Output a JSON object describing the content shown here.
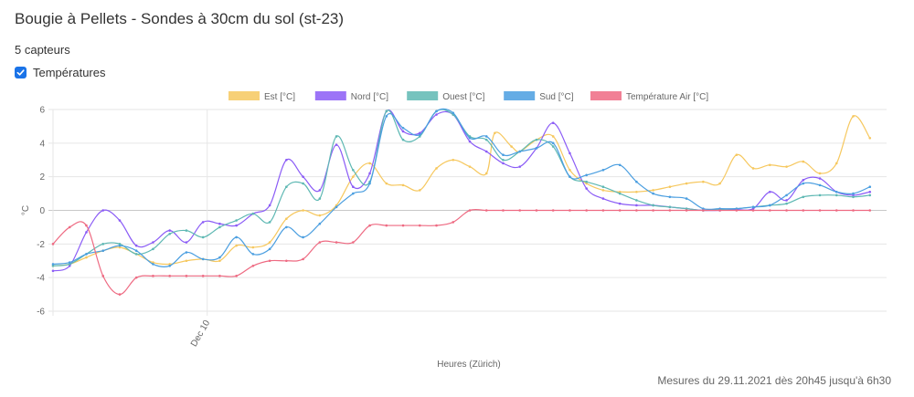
{
  "page": {
    "title": "Bougie à Pellets - Sondes à 30cm du sol (st-23)",
    "sensor_count": "5 capteurs",
    "checkbox_label": "Températures",
    "checkbox_checked": true,
    "footer": "Mesures du 29.11.2021 dès 20h45 jusqu'à 6h30"
  },
  "chart_data": {
    "type": "line",
    "xlabel": "Heures (Zürich)",
    "ylabel": "°C",
    "ylim": [
      -6,
      6
    ],
    "yticks": [
      6,
      4,
      2,
      0,
      -2,
      -4,
      -6
    ],
    "xtick_labels": [
      {
        "label": "Dec 10",
        "x": 0.185
      }
    ],
    "x_domain": [
      0,
      1
    ],
    "grid": true,
    "legend_position": "top",
    "series": [
      {
        "name": "Est [°C]",
        "color": "#f6c85f",
        "points": [
          [
            0,
            -3.3
          ],
          [
            0.02,
            -3.2
          ],
          [
            0.04,
            -2.8
          ],
          [
            0.06,
            -2.4
          ],
          [
            0.08,
            -2.2
          ],
          [
            0.1,
            -2.6
          ],
          [
            0.12,
            -3.1
          ],
          [
            0.14,
            -3.2
          ],
          [
            0.16,
            -3.0
          ],
          [
            0.18,
            -2.9
          ],
          [
            0.2,
            -3.0
          ],
          [
            0.22,
            -2.1
          ],
          [
            0.24,
            -2.2
          ],
          [
            0.26,
            -1.9
          ],
          [
            0.28,
            -0.5
          ],
          [
            0.3,
            0
          ],
          [
            0.32,
            -0.3
          ],
          [
            0.34,
            0.3
          ],
          [
            0.36,
            2.0
          ],
          [
            0.38,
            2.8
          ],
          [
            0.4,
            1.6
          ],
          [
            0.42,
            1.5
          ],
          [
            0.44,
            1.2
          ],
          [
            0.46,
            2.5
          ],
          [
            0.48,
            3.0
          ],
          [
            0.5,
            2.6
          ],
          [
            0.52,
            2.2
          ],
          [
            0.53,
            4.6
          ],
          [
            0.55,
            3.8
          ],
          [
            0.56,
            3.5
          ],
          [
            0.58,
            4.2
          ],
          [
            0.6,
            4.4
          ],
          [
            0.62,
            2.4
          ],
          [
            0.64,
            1.6
          ],
          [
            0.66,
            1.2
          ],
          [
            0.68,
            1.1
          ],
          [
            0.7,
            1.1
          ],
          [
            0.72,
            1.2
          ],
          [
            0.74,
            1.4
          ],
          [
            0.76,
            1.6
          ],
          [
            0.78,
            1.7
          ],
          [
            0.8,
            1.6
          ],
          [
            0.82,
            3.3
          ],
          [
            0.84,
            2.5
          ],
          [
            0.86,
            2.7
          ],
          [
            0.88,
            2.6
          ],
          [
            0.9,
            2.9
          ],
          [
            0.92,
            2.2
          ],
          [
            0.94,
            2.8
          ],
          [
            0.96,
            5.6
          ],
          [
            0.98,
            4.3
          ]
        ]
      },
      {
        "name": "Nord [°C]",
        "color": "#8b5cf6",
        "points": [
          [
            0,
            -3.6
          ],
          [
            0.02,
            -3.3
          ],
          [
            0.04,
            -1.3
          ],
          [
            0.06,
            0
          ],
          [
            0.08,
            -0.6
          ],
          [
            0.1,
            -2.1
          ],
          [
            0.12,
            -1.9
          ],
          [
            0.14,
            -1.2
          ],
          [
            0.16,
            -1.9
          ],
          [
            0.18,
            -0.7
          ],
          [
            0.2,
            -0.8
          ],
          [
            0.22,
            -0.9
          ],
          [
            0.24,
            -0.2
          ],
          [
            0.26,
            0.3
          ],
          [
            0.28,
            3.0
          ],
          [
            0.3,
            2.0
          ],
          [
            0.32,
            1.2
          ],
          [
            0.34,
            3.9
          ],
          [
            0.36,
            1.4
          ],
          [
            0.38,
            2.2
          ],
          [
            0.4,
            5.9
          ],
          [
            0.42,
            4.7
          ],
          [
            0.44,
            4.6
          ],
          [
            0.46,
            5.7
          ],
          [
            0.48,
            5.7
          ],
          [
            0.5,
            4.1
          ],
          [
            0.52,
            3.5
          ],
          [
            0.54,
            2.8
          ],
          [
            0.56,
            2.6
          ],
          [
            0.58,
            3.7
          ],
          [
            0.6,
            5.2
          ],
          [
            0.62,
            3.4
          ],
          [
            0.64,
            1.3
          ],
          [
            0.66,
            0.7
          ],
          [
            0.68,
            0.4
          ],
          [
            0.7,
            0.3
          ],
          [
            0.72,
            0.3
          ],
          [
            0.74,
            0.2
          ],
          [
            0.76,
            0.1
          ],
          [
            0.78,
            0
          ],
          [
            0.8,
            0
          ],
          [
            0.82,
            0.05
          ],
          [
            0.84,
            0.1
          ],
          [
            0.86,
            1.1
          ],
          [
            0.88,
            0.6
          ],
          [
            0.9,
            1.8
          ],
          [
            0.92,
            1.9
          ],
          [
            0.94,
            1.1
          ],
          [
            0.96,
            0.9
          ],
          [
            0.98,
            1.1
          ]
        ]
      },
      {
        "name": "Ouest [°C]",
        "color": "#5eb8b3",
        "points": [
          [
            0,
            -3.3
          ],
          [
            0.02,
            -3.2
          ],
          [
            0.04,
            -2.6
          ],
          [
            0.06,
            -2.0
          ],
          [
            0.08,
            -2.0
          ],
          [
            0.1,
            -2.6
          ],
          [
            0.12,
            -2.3
          ],
          [
            0.14,
            -1.4
          ],
          [
            0.16,
            -1.2
          ],
          [
            0.18,
            -1.6
          ],
          [
            0.2,
            -1.0
          ],
          [
            0.22,
            -0.6
          ],
          [
            0.24,
            -0.2
          ],
          [
            0.26,
            -0.7
          ],
          [
            0.28,
            1.4
          ],
          [
            0.3,
            1.6
          ],
          [
            0.32,
            0.7
          ],
          [
            0.34,
            4.4
          ],
          [
            0.36,
            2.4
          ],
          [
            0.38,
            1.7
          ],
          [
            0.4,
            5.9
          ],
          [
            0.42,
            4.2
          ],
          [
            0.44,
            4.4
          ],
          [
            0.46,
            5.9
          ],
          [
            0.48,
            5.7
          ],
          [
            0.5,
            4.4
          ],
          [
            0.52,
            4.2
          ],
          [
            0.54,
            3.0
          ],
          [
            0.56,
            3.5
          ],
          [
            0.58,
            4.2
          ],
          [
            0.6,
            3.8
          ],
          [
            0.62,
            2.0
          ],
          [
            0.64,
            1.7
          ],
          [
            0.66,
            1.4
          ],
          [
            0.68,
            1.0
          ],
          [
            0.7,
            0.6
          ],
          [
            0.72,
            0.3
          ],
          [
            0.74,
            0.2
          ],
          [
            0.76,
            0.1
          ],
          [
            0.78,
            0
          ],
          [
            0.8,
            0.05
          ],
          [
            0.82,
            0.1
          ],
          [
            0.84,
            0.2
          ],
          [
            0.86,
            0.3
          ],
          [
            0.88,
            0.4
          ],
          [
            0.9,
            0.8
          ],
          [
            0.92,
            0.9
          ],
          [
            0.94,
            0.9
          ],
          [
            0.96,
            0.8
          ],
          [
            0.98,
            0.9
          ]
        ]
      },
      {
        "name": "Sud [°C]",
        "color": "#4a9ee0",
        "points": [
          [
            0,
            -3.2
          ],
          [
            0.02,
            -3.1
          ],
          [
            0.04,
            -2.6
          ],
          [
            0.06,
            -2.4
          ],
          [
            0.08,
            -2.1
          ],
          [
            0.1,
            -2.4
          ],
          [
            0.12,
            -3.2
          ],
          [
            0.14,
            -3.3
          ],
          [
            0.16,
            -2.5
          ],
          [
            0.18,
            -2.9
          ],
          [
            0.2,
            -2.8
          ],
          [
            0.22,
            -1.6
          ],
          [
            0.24,
            -2.6
          ],
          [
            0.26,
            -2.3
          ],
          [
            0.28,
            -1.0
          ],
          [
            0.3,
            -1.6
          ],
          [
            0.32,
            -0.8
          ],
          [
            0.34,
            0.2
          ],
          [
            0.36,
            1.0
          ],
          [
            0.38,
            1.6
          ],
          [
            0.4,
            5.6
          ],
          [
            0.42,
            4.9
          ],
          [
            0.44,
            4.5
          ],
          [
            0.46,
            5.9
          ],
          [
            0.48,
            5.8
          ],
          [
            0.5,
            4.3
          ],
          [
            0.52,
            4.4
          ],
          [
            0.54,
            3.3
          ],
          [
            0.56,
            3.5
          ],
          [
            0.58,
            3.7
          ],
          [
            0.6,
            4.0
          ],
          [
            0.62,
            2.0
          ],
          [
            0.64,
            2.1
          ],
          [
            0.66,
            2.4
          ],
          [
            0.68,
            2.7
          ],
          [
            0.7,
            1.7
          ],
          [
            0.72,
            1.0
          ],
          [
            0.74,
            0.8
          ],
          [
            0.76,
            0.7
          ],
          [
            0.78,
            0.1
          ],
          [
            0.8,
            0.1
          ],
          [
            0.82,
            0.1
          ],
          [
            0.84,
            0.2
          ],
          [
            0.86,
            0.3
          ],
          [
            0.88,
            0.9
          ],
          [
            0.9,
            1.6
          ],
          [
            0.92,
            1.5
          ],
          [
            0.94,
            1.1
          ],
          [
            0.96,
            1.0
          ],
          [
            0.98,
            1.4
          ]
        ]
      },
      {
        "name": "Température Air [°C]",
        "color": "#ee6a82",
        "points": [
          [
            0,
            -2.0
          ],
          [
            0.02,
            -1.0
          ],
          [
            0.04,
            -0.9
          ],
          [
            0.06,
            -3.9
          ],
          [
            0.08,
            -5.0
          ],
          [
            0.1,
            -4.0
          ],
          [
            0.12,
            -3.9
          ],
          [
            0.14,
            -3.9
          ],
          [
            0.16,
            -3.9
          ],
          [
            0.18,
            -3.9
          ],
          [
            0.2,
            -3.9
          ],
          [
            0.22,
            -3.9
          ],
          [
            0.24,
            -3.3
          ],
          [
            0.26,
            -3.0
          ],
          [
            0.28,
            -3.0
          ],
          [
            0.3,
            -2.9
          ],
          [
            0.32,
            -1.9
          ],
          [
            0.34,
            -1.9
          ],
          [
            0.36,
            -1.9
          ],
          [
            0.38,
            -0.9
          ],
          [
            0.4,
            -0.9
          ],
          [
            0.42,
            -0.9
          ],
          [
            0.44,
            -0.9
          ],
          [
            0.46,
            -0.9
          ],
          [
            0.48,
            -0.7
          ],
          [
            0.5,
            0
          ],
          [
            0.52,
            0
          ],
          [
            0.54,
            0
          ],
          [
            0.56,
            0
          ],
          [
            0.58,
            0
          ],
          [
            0.6,
            0
          ],
          [
            0.62,
            0
          ],
          [
            0.64,
            0
          ],
          [
            0.66,
            0
          ],
          [
            0.68,
            0
          ],
          [
            0.7,
            0
          ],
          [
            0.72,
            0
          ],
          [
            0.74,
            0
          ],
          [
            0.76,
            0
          ],
          [
            0.78,
            0
          ],
          [
            0.8,
            0
          ],
          [
            0.82,
            0
          ],
          [
            0.84,
            0
          ],
          [
            0.86,
            0
          ],
          [
            0.88,
            0
          ],
          [
            0.9,
            0
          ],
          [
            0.92,
            0
          ],
          [
            0.94,
            0
          ],
          [
            0.96,
            0
          ],
          [
            0.98,
            0
          ]
        ]
      }
    ]
  }
}
